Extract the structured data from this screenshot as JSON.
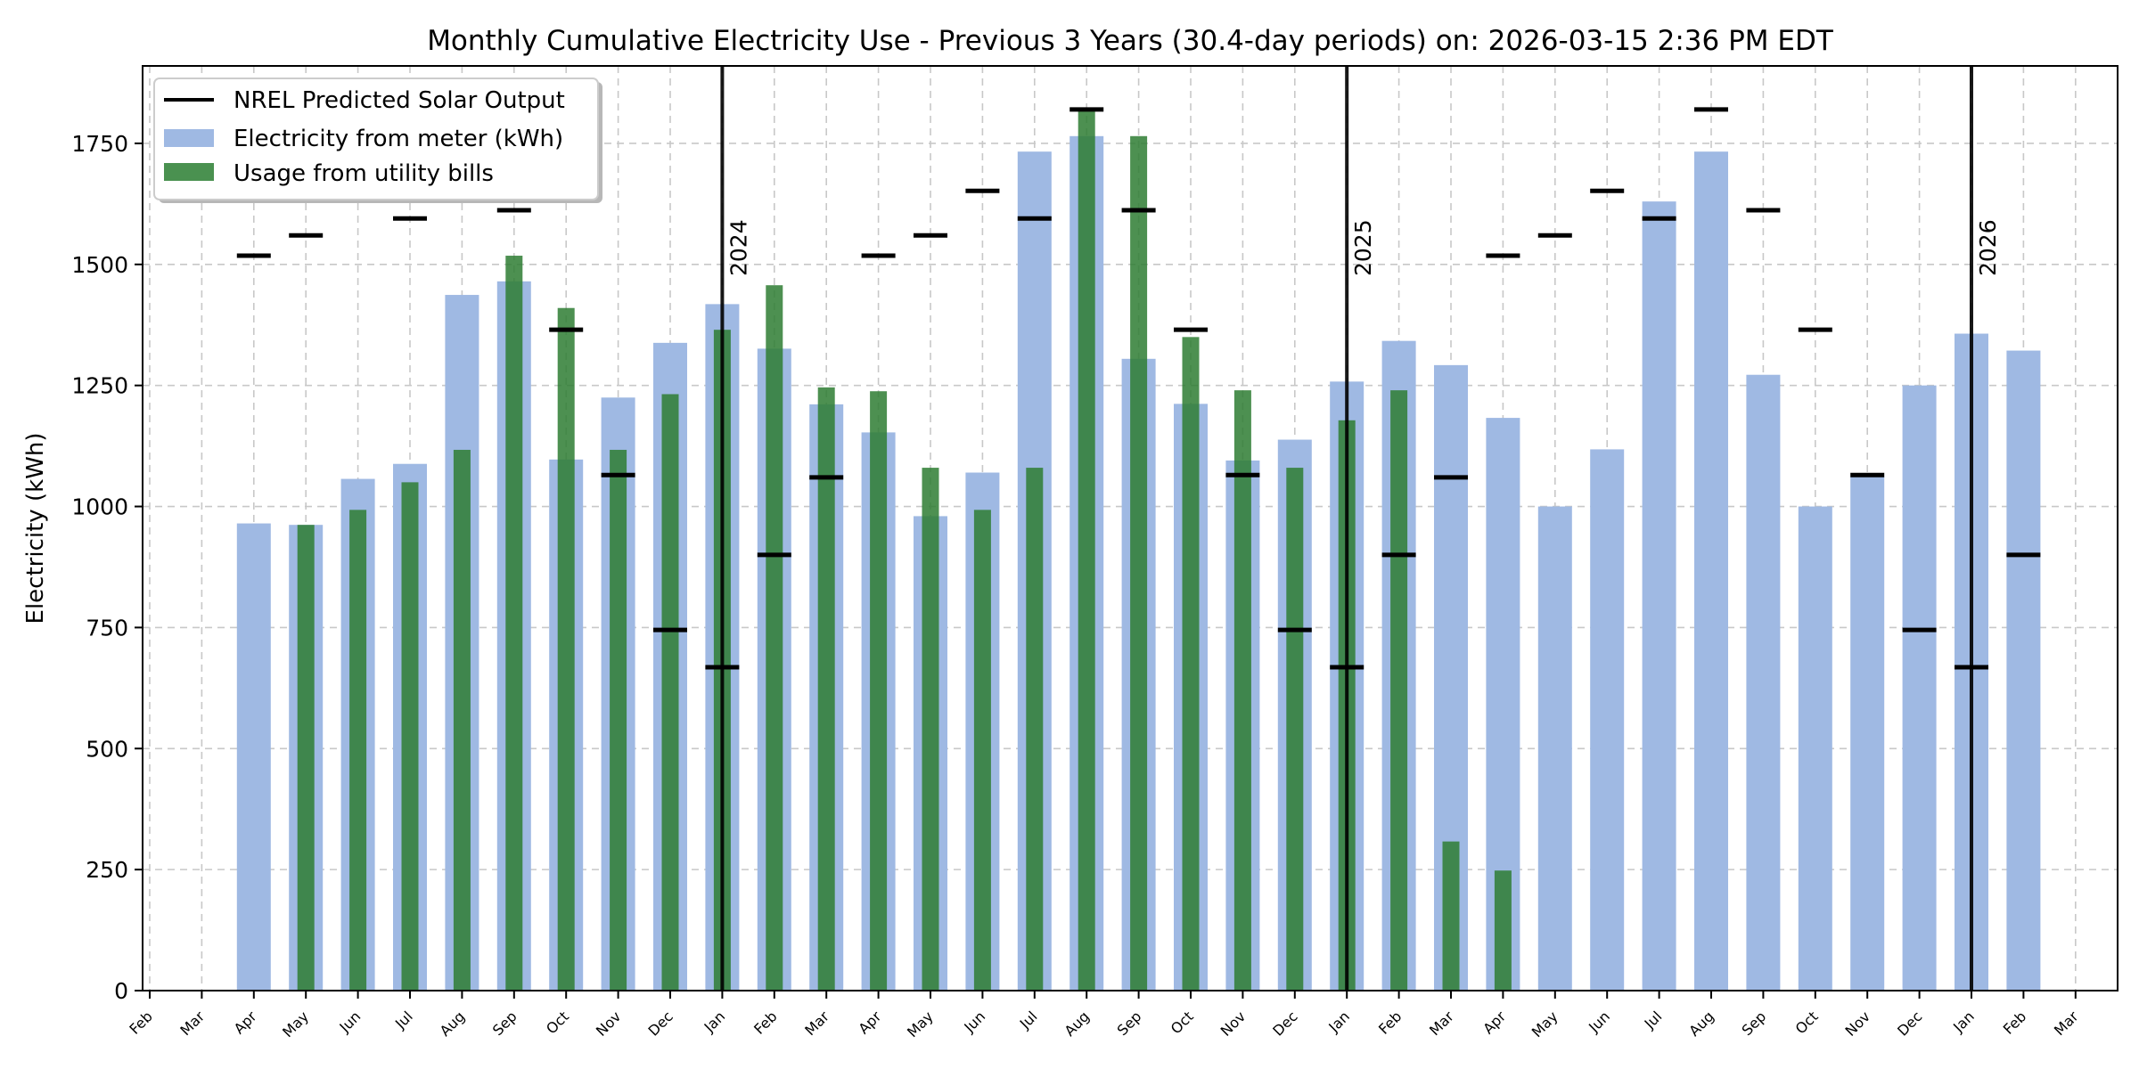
{
  "chart_data": {
    "type": "bar",
    "title": "Monthly Cumulative Electricity Use - Previous 3 Years (30.4-day periods) on: 2026-03-15 2:36 PM EDT",
    "xlabel": "",
    "ylabel": "Electricity (kWh)",
    "ylim": [
      0,
      1910
    ],
    "yticks": [
      0,
      250,
      500,
      750,
      1000,
      1250,
      1500,
      1750
    ],
    "grid": true,
    "legend_position": "top-left",
    "x_tick_labels": [
      "Feb",
      "Mar",
      "Apr",
      "May",
      "Jun",
      "Jul",
      "Aug",
      "Sep",
      "Oct",
      "Nov",
      "Dec",
      "Jan",
      "Feb",
      "Mar",
      "Apr",
      "May",
      "Jun",
      "Jul",
      "Aug",
      "Sep",
      "Oct",
      "Nov",
      "Dec",
      "Jan",
      "Feb",
      "Mar",
      "Apr",
      "May",
      "Jun",
      "Jul",
      "Aug",
      "Sep",
      "Oct",
      "Nov",
      "Dec",
      "Jan",
      "Feb",
      "Mar"
    ],
    "year_markers": [
      {
        "label": "2024",
        "tick_index": 11
      },
      {
        "label": "2025",
        "tick_index": 23
      },
      {
        "label": "2026",
        "tick_index": 35
      }
    ],
    "legend": [
      {
        "label": "NREL Predicted Solar Output",
        "kind": "line",
        "color": "#000000"
      },
      {
        "label": "Electricity from meter (kWh)",
        "kind": "patch",
        "color": "#9fb9e3"
      },
      {
        "label": "Usage from utility bills",
        "kind": "patch",
        "color": "#2e7d43"
      }
    ],
    "series": [
      {
        "name": "Electricity from meter (kWh)",
        "start_index": 2,
        "values": [
          965,
          962,
          1057,
          1088,
          1437,
          1465,
          1097,
          1225,
          1338,
          1418,
          1326,
          1211,
          1153,
          980,
          1070,
          1733,
          1765,
          1305,
          1212,
          1095,
          1138,
          1258,
          1342,
          1292,
          1183,
          1000,
          1118,
          1630,
          1733,
          1272,
          1000,
          1062,
          1250,
          1357,
          1322
        ]
      },
      {
        "name": "Usage from utility bills",
        "start_index": 3,
        "values": [
          962,
          993,
          1050,
          1117,
          1518,
          1410,
          1117,
          1232,
          1365,
          1457,
          1246,
          1238,
          1080,
          993,
          1080,
          1820,
          1765,
          1350,
          1240,
          1080,
          1178,
          1240,
          308,
          248
        ]
      },
      {
        "name": "NREL Predicted Solar Output",
        "start_index": 2,
        "values": [
          1518,
          1560,
          1652,
          1595,
          1820,
          1612,
          1365,
          1065,
          745,
          668,
          900,
          1060,
          1518,
          1560,
          1652,
          1595,
          1820,
          1612,
          1365,
          1065,
          745,
          668,
          900,
          1060,
          1518,
          1560,
          1652,
          1595,
          1820,
          1612,
          1365,
          1065,
          745,
          668,
          900
        ]
      }
    ],
    "colors": {
      "meter": "#9fb9e3",
      "bills": "#2e7d43",
      "bills_over": "#4a9150",
      "nrel": "#000000",
      "grid": "#c8c8c8"
    }
  }
}
